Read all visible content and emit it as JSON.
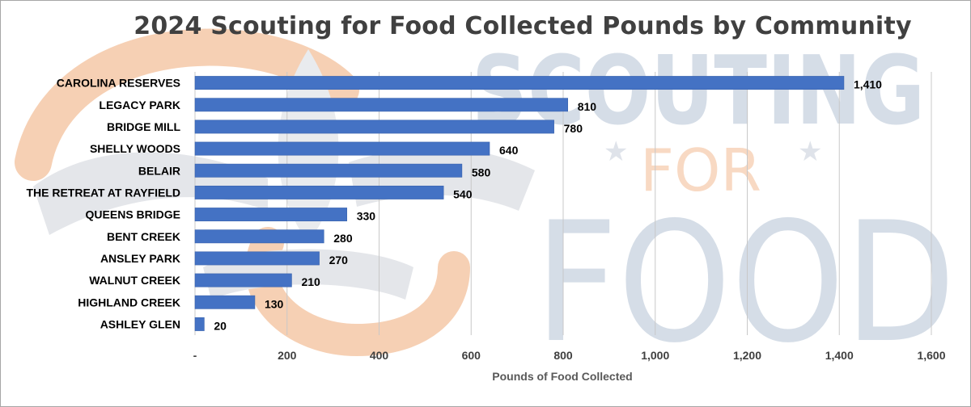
{
  "watermark": {
    "word1": "SCOUTING",
    "word2": "FOR",
    "word3": "FOOD",
    "colors": {
      "blue": "#c7d2df",
      "orange": "#f6d0b4",
      "gray": "#e4e6ea"
    }
  },
  "chart_data": {
    "type": "bar",
    "orientation": "horizontal",
    "title": "2024 Scouting for Food Collected Pounds by Community",
    "xlabel": "Pounds of Food Collected",
    "ylabel": "",
    "xlim": [
      0,
      1600
    ],
    "xticks": [
      "-",
      "200",
      "400",
      "600",
      "800",
      "1,000",
      "1,200",
      "1,400",
      "1,600"
    ],
    "grid": "vertical",
    "legend": "none",
    "bar_color": "#4472c4",
    "categories": [
      "CAROLINA RESERVES",
      "LEGACY PARK",
      "BRIDGE MILL",
      "SHELLY WOODS",
      "BELAIR",
      "THE RETREAT AT RAYFIELD",
      "QUEENS BRIDGE",
      "BENT CREEK",
      "ANSLEY PARK",
      "WALNUT CREEK",
      "HIGHLAND CREEK",
      "ASHLEY GLEN"
    ],
    "values": [
      1410,
      810,
      780,
      640,
      580,
      540,
      330,
      280,
      270,
      210,
      130,
      20
    ],
    "value_labels": [
      "1,410",
      "810",
      "780",
      "640",
      "580",
      "540",
      "330",
      "280",
      "270",
      "210",
      "130",
      "20"
    ]
  }
}
